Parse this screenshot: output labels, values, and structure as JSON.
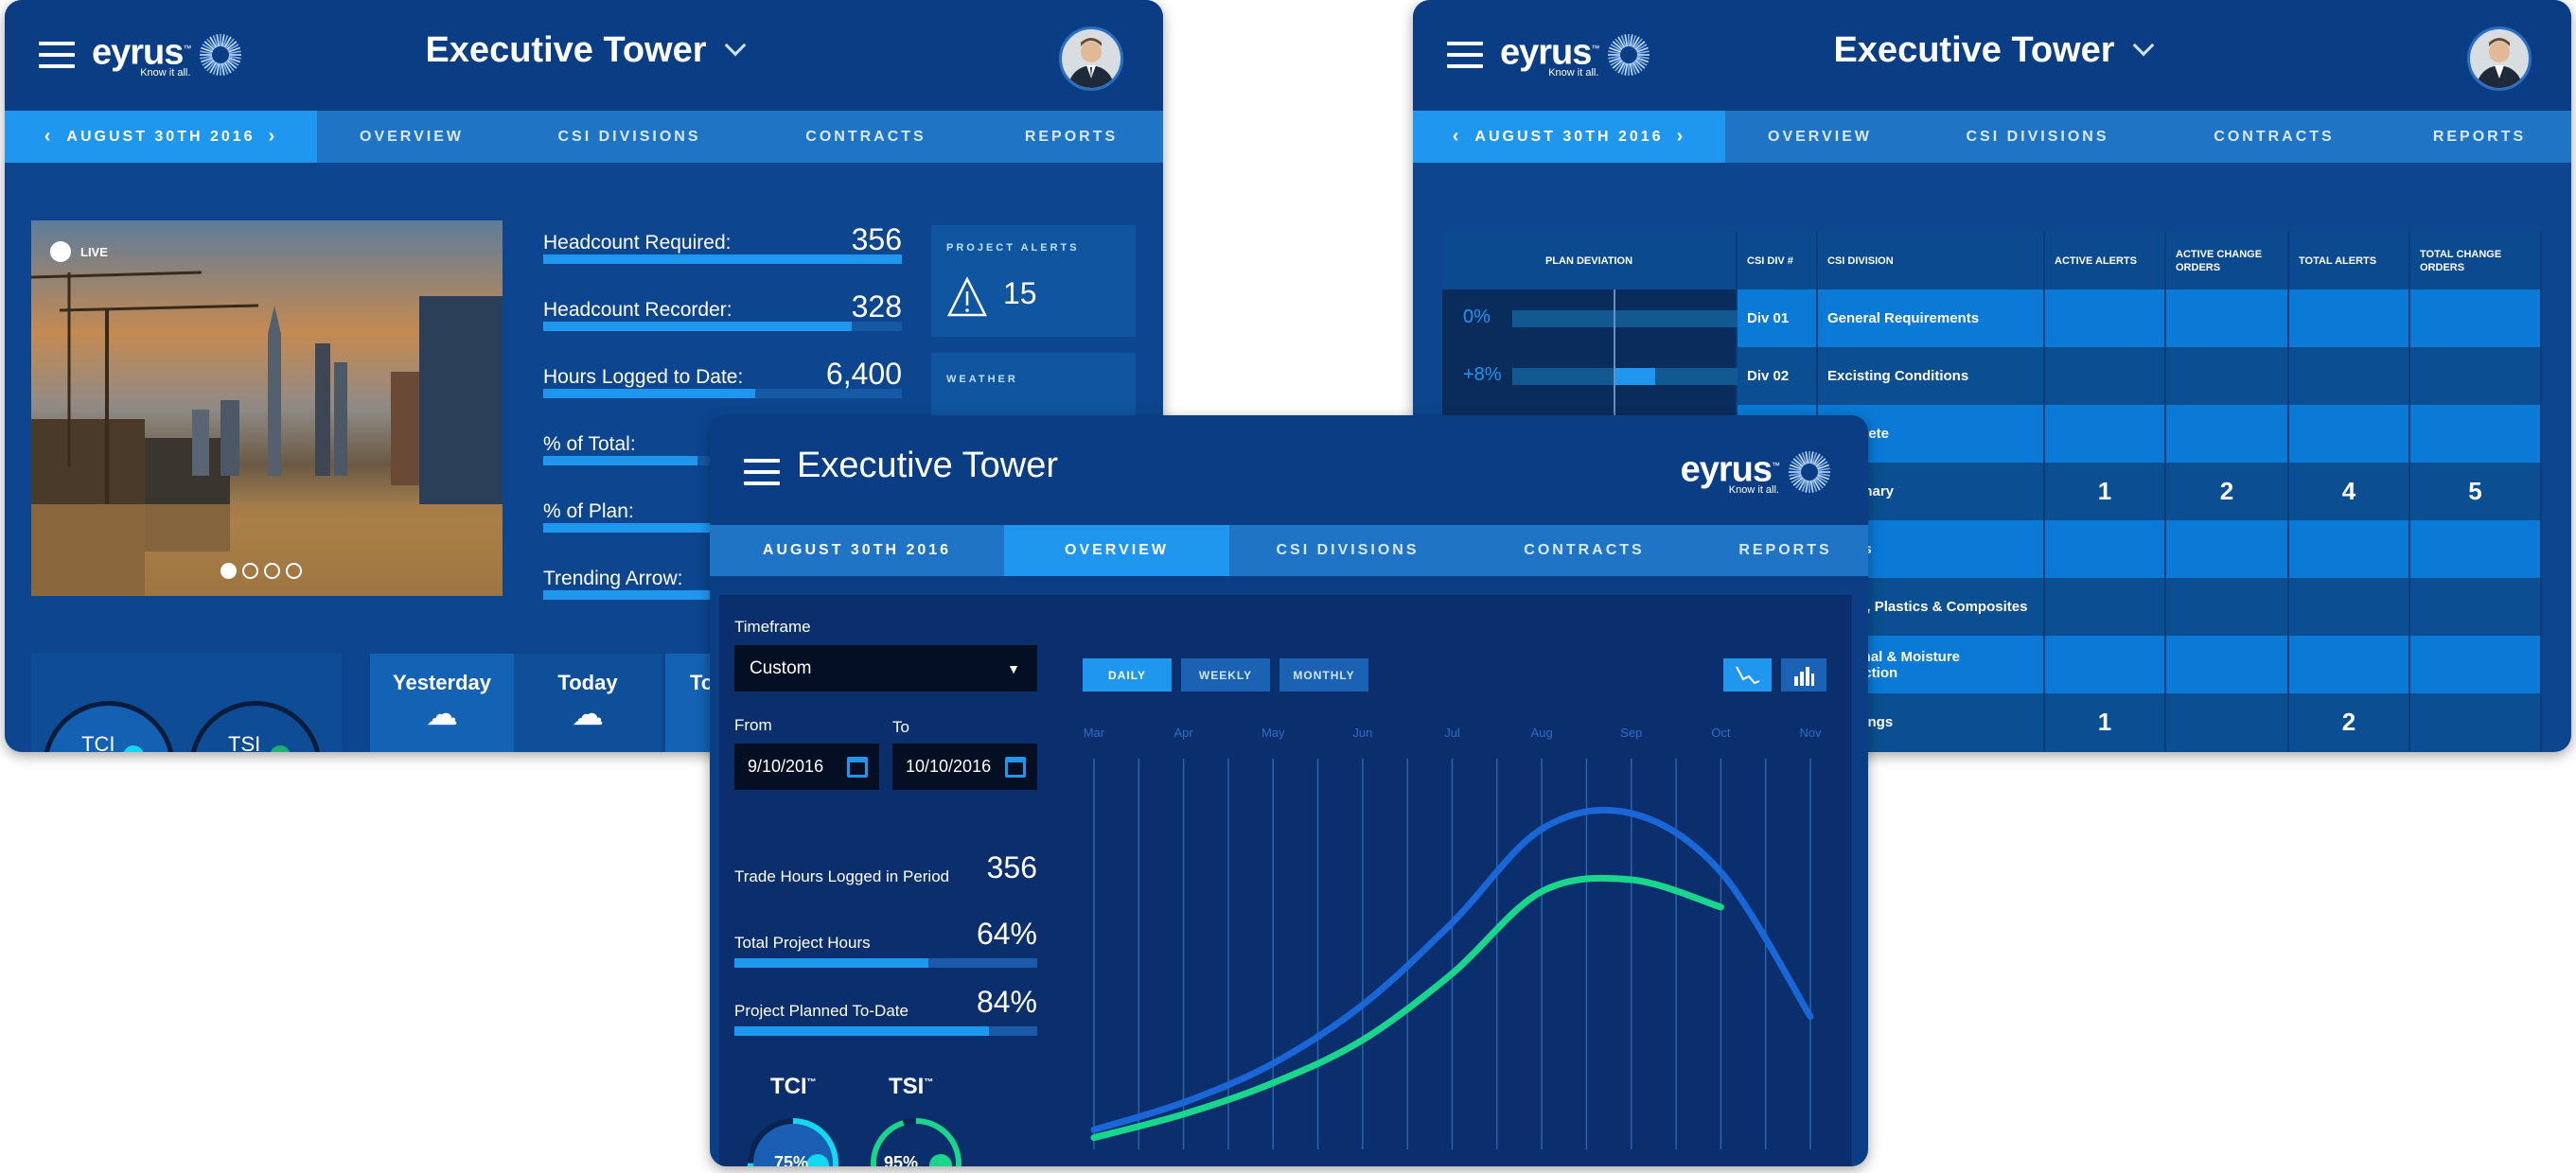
{
  "project_title": "Executive Tower",
  "logo": {
    "wordmark": "eyrus",
    "tm": "™",
    "tagline": "Know it all."
  },
  "nav": {
    "date": "AUGUST 30TH 2016",
    "tabs": [
      "OVERVIEW",
      "CSI DIVISIONS",
      "CONTRACTS",
      "REPORTS"
    ]
  },
  "colors": {
    "accent": "#1f97ef",
    "nav": "#1f74c6",
    "bg": "#0d468f",
    "green": "#19d68c",
    "cyan": "#12d8f0"
  },
  "dashboard": {
    "live_label": "LIVE",
    "stats": [
      {
        "label": "Headcount Required:",
        "value": "356",
        "fill": 1.0
      },
      {
        "label": "Headcount Recorder:",
        "value": "328",
        "fill": 0.86
      },
      {
        "label": "Hours Logged to Date:",
        "value": "6,400",
        "fill": 0.59
      },
      {
        "label": "% of Total:",
        "value": "",
        "fill": 0.43
      },
      {
        "label": "% of Plan:",
        "value": "",
        "fill": 0.5
      },
      {
        "label": "Trending Arrow:",
        "value": "",
        "fill": 0.5
      }
    ],
    "alerts": {
      "title": "PROJECT ALERTS",
      "count": "15"
    },
    "weather": {
      "title": "WEATHER",
      "days": [
        "Yesterday",
        "Today",
        "Tomorrow"
      ],
      "icons": [
        "rain-cloud-icon",
        "storm-cloud-icon",
        "cloud-icon"
      ]
    },
    "indices": [
      "TCI",
      "TSI"
    ]
  },
  "csi": {
    "headers": [
      "PLAN DEVIATION",
      "CSI DIV #",
      "CSI DIVISION",
      "ACTIVE ALERTS",
      "ACTIVE CHANGE ORDERS",
      "TOTAL ALERTS",
      "TOTAL CHANGE ORDERS"
    ],
    "rows": [
      {
        "dev": "0%",
        "dev_value": 0,
        "div": "Div 01",
        "name": "General Requirements",
        "aa": "",
        "aco": "",
        "ta": "",
        "tco": ""
      },
      {
        "dev": "+8%",
        "dev_value": 8,
        "div": "Div 02",
        "name": "Excisting Conditions",
        "aa": "",
        "aco": "",
        "ta": "",
        "tco": ""
      },
      {
        "dev": "",
        "div": "",
        "name": "Concrete",
        "aa": "",
        "aco": "",
        "ta": "",
        "tco": ""
      },
      {
        "dev": "",
        "div": "",
        "name": "Masonary",
        "aa": "1",
        "aco": "2",
        "ta": "4",
        "tco": "5"
      },
      {
        "dev": "",
        "div": "",
        "name": "Metals",
        "aa": "",
        "aco": "",
        "ta": "",
        "tco": ""
      },
      {
        "dev": "",
        "div": "",
        "name": "Wood, Plastics & Composites",
        "aa": "",
        "aco": "",
        "ta": "",
        "tco": ""
      },
      {
        "dev": "",
        "div": "",
        "name": "Thermal & Moisture Protection",
        "aa": "",
        "aco": "",
        "ta": "",
        "tco": ""
      },
      {
        "dev": "",
        "div": "",
        "name": "Openings",
        "aa": "1",
        "aco": "",
        "ta": "2",
        "tco": ""
      }
    ]
  },
  "overview": {
    "timeframe_label": "Timeframe",
    "timeframe_value": "Custom",
    "from_label": "From",
    "to_label": "To",
    "from_value": "9/10/2016",
    "to_value": "10/10/2016",
    "stats": [
      {
        "label": "Trade Hours Logged in Period",
        "value": "356"
      },
      {
        "label": "Total Project Hours",
        "value": "64%",
        "fill": 0.64
      },
      {
        "label": "Project Planned To-Date",
        "value": "84%",
        "fill": 0.84
      }
    ],
    "tci": {
      "label": "TCI",
      "tm": "™",
      "value": "75%",
      "fraction": 0.75,
      "trend": "up"
    },
    "tsi": {
      "label": "TSI",
      "tm": "™",
      "value": "95%",
      "fraction": 0.95,
      "trend": "down"
    },
    "periods": [
      "DAILY",
      "WEEKLY",
      "MONTHLY"
    ],
    "active_period": "DAILY",
    "chart_types": [
      "line-chart-icon",
      "bar-chart-icon"
    ]
  },
  "chart_data": {
    "type": "line",
    "categories": [
      "Mar",
      "Apr",
      "May",
      "Jun",
      "Jul",
      "Aug",
      "Sep",
      "Oct",
      "Nov"
    ],
    "series": [
      {
        "color": "#1a66d6",
        "values": [
          5,
          12,
          22,
          37,
          58,
          82,
          86,
          71,
          34
        ]
      },
      {
        "color": "#19d68c",
        "values": [
          3,
          9,
          17,
          28,
          45,
          66,
          69,
          62,
          null
        ]
      }
    ],
    "ylim": [
      0,
      100
    ],
    "grid": "vertical",
    "xlabel": "",
    "ylabel": ""
  }
}
